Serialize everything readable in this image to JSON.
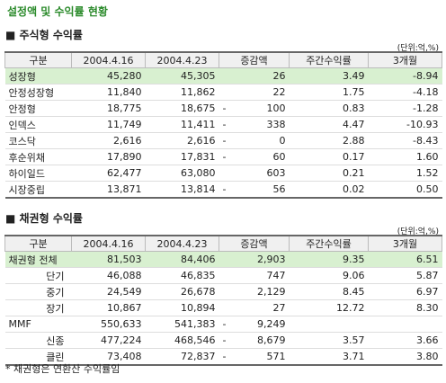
{
  "title": "설정액 및 수익률 현황",
  "stock": {
    "heading": "■ 주식형 수익률",
    "unit": "(단위:억,%)",
    "columns": [
      "구분",
      "2004.4.16",
      "2004.4.23",
      "증감액",
      "주간수익률",
      "3개월"
    ],
    "rows": [
      {
        "label": "성장형",
        "v1": "45,280",
        "v2": "45,305",
        "change": "26",
        "weekly": "3.49",
        "m3": "-8.94",
        "highlight": true
      },
      {
        "label": "안정성장형",
        "v1": "11,840",
        "v2": "11,862",
        "change": "22",
        "weekly": "1.75",
        "m3": "-4.18"
      },
      {
        "label": "안정형",
        "v1": "18,775",
        "v2": "18,675",
        "sign": "-",
        "change": "100",
        "weekly": "0.83",
        "m3": "-1.28"
      },
      {
        "label": "인덱스",
        "v1": "11,749",
        "v2": "11,411",
        "sign": "-",
        "change": "338",
        "weekly": "4.47",
        "m3": "-10.93",
        "group_start": true
      },
      {
        "label": "코스닥",
        "v1": "2,616",
        "v2": "2,616",
        "sign": "-",
        "change": "0",
        "weekly": "2.88",
        "m3": "-8.43"
      },
      {
        "label": "후순위채",
        "v1": "17,890",
        "v2": "17,831",
        "sign": "-",
        "change": "60",
        "weekly": "0.17",
        "m3": "1.60",
        "group_start": true
      },
      {
        "label": "하이일드",
        "v1": "62,477",
        "v2": "63,080",
        "change": "603",
        "weekly": "0.21",
        "m3": "1.52"
      },
      {
        "label": "시장중립",
        "v1": "13,871",
        "v2": "13,814",
        "sign": "-",
        "change": "56",
        "weekly": "0.02",
        "m3": "0.50"
      }
    ]
  },
  "bond": {
    "heading": "■ 채권형 수익률",
    "unit": "(단위:억,%)",
    "columns": [
      "구분",
      "2004.4.16",
      "2004.4.23",
      "증감액",
      "주간수익률",
      "3개월"
    ],
    "rows": [
      {
        "label": "채권형 전체",
        "v1": "81,503",
        "v2": "84,406",
        "change": "2,903",
        "weekly": "9.35",
        "m3": "6.51",
        "highlight": true
      },
      {
        "label": "단기",
        "v1": "46,088",
        "v2": "46,835",
        "change": "747",
        "weekly": "9.06",
        "m3": "5.87",
        "indent": true
      },
      {
        "label": "중기",
        "v1": "24,549",
        "v2": "26,678",
        "change": "2,129",
        "weekly": "8.45",
        "m3": "6.97",
        "indent": true
      },
      {
        "label": "장기",
        "v1": "10,867",
        "v2": "10,894",
        "change": "27",
        "weekly": "12.72",
        "m3": "8.30",
        "indent": true
      },
      {
        "label": "MMF",
        "v1": "550,633",
        "v2": "541,383",
        "sign": "-",
        "change": "9,249",
        "group_start": true
      },
      {
        "label": "신종",
        "v1": "477,224",
        "v2": "468,546",
        "sign": "-",
        "change": "8,679",
        "weekly": "3.57",
        "m3": "3.66",
        "indent": true
      },
      {
        "label": "클린",
        "v1": "73,408",
        "v2": "72,837",
        "sign": "-",
        "change": "571",
        "weekly": "3.71",
        "m3": "3.80",
        "indent": true
      }
    ]
  },
  "footnote": "* 채권형은 연환산 수익률임"
}
